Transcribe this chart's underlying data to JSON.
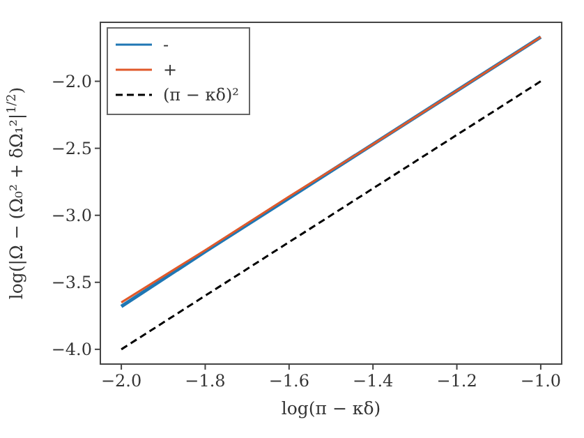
{
  "chart_data": {
    "type": "line",
    "xlabel": "log(π − κδ)",
    "ylabel": "log(|Ω − (Ω₀² + δΩ₁²|$^{1/2}$)",
    "xlim": [
      -2.05,
      -0.95
    ],
    "xticks": [
      {
        "value": -2.0,
        "label": "−2.0"
      },
      {
        "value": -1.8,
        "label": "−1.8"
      },
      {
        "value": -1.6,
        "label": "−1.6"
      },
      {
        "value": -1.4,
        "label": "−1.4"
      },
      {
        "value": -1.2,
        "label": "−1.2"
      },
      {
        "value": -1.0,
        "label": "−1.0"
      }
    ],
    "ylim": [
      -4.11,
      -1.56
    ],
    "yticks": [
      {
        "value": -4.0,
        "label": "−4.0"
      },
      {
        "value": -3.5,
        "label": "−3.5"
      },
      {
        "value": -3.0,
        "label": "−3.0"
      },
      {
        "value": -2.5,
        "label": "−2.5"
      },
      {
        "value": -2.0,
        "label": "−2.0"
      }
    ],
    "legend": "top left",
    "grid": false,
    "series": [
      {
        "name": "-",
        "color": "#1f77b4",
        "line_style": "solid",
        "x": [
          -2.0,
          -1.8,
          -1.6,
          -1.4,
          -1.2,
          -1.0
        ],
        "values": [
          -3.68,
          -3.27,
          -2.87,
          -2.47,
          -2.07,
          -1.67
        ]
      },
      {
        "name": "+",
        "color": "#e0592a",
        "line_style": "solid",
        "x": [
          -2.0,
          -1.8,
          -1.6,
          -1.4,
          -1.2,
          -1.0
        ],
        "values": [
          -3.65,
          -3.26,
          -2.86,
          -2.47,
          -2.07,
          -1.67
        ]
      },
      {
        "name": "(π − κδ)²",
        "color": "#000000",
        "line_style": "dashed",
        "x": [
          -2.0,
          -1.0
        ],
        "values": [
          -4.0,
          -2.0
        ]
      }
    ]
  }
}
